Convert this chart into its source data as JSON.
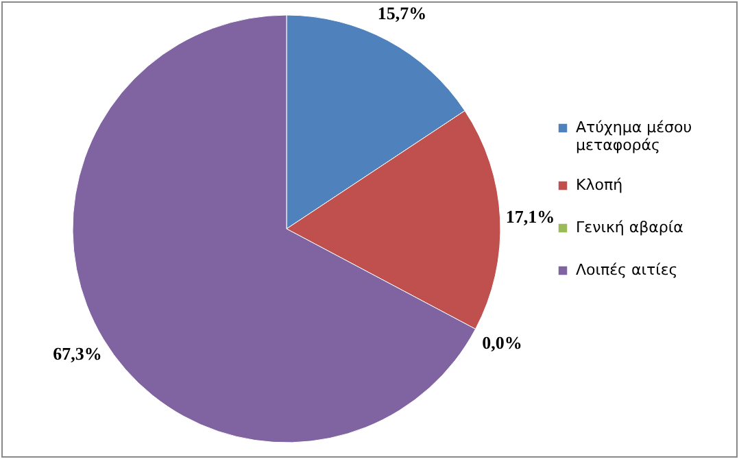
{
  "chart_data": {
    "type": "pie",
    "categories": [
      "Ατύχημα μέσου μεταφοράς",
      "Κλοπή",
      "Γενική αβαρία",
      "Λοιπές αιτίες"
    ],
    "values": [
      15.7,
      17.1,
      0.0,
      67.3
    ],
    "colors": [
      "#4f81bd",
      "#c0504d",
      "#9bbb59",
      "#8064a2"
    ],
    "value_labels": [
      "15,7%",
      "17,1%",
      "0,0%",
      "67,3%"
    ],
    "legend": "right"
  }
}
